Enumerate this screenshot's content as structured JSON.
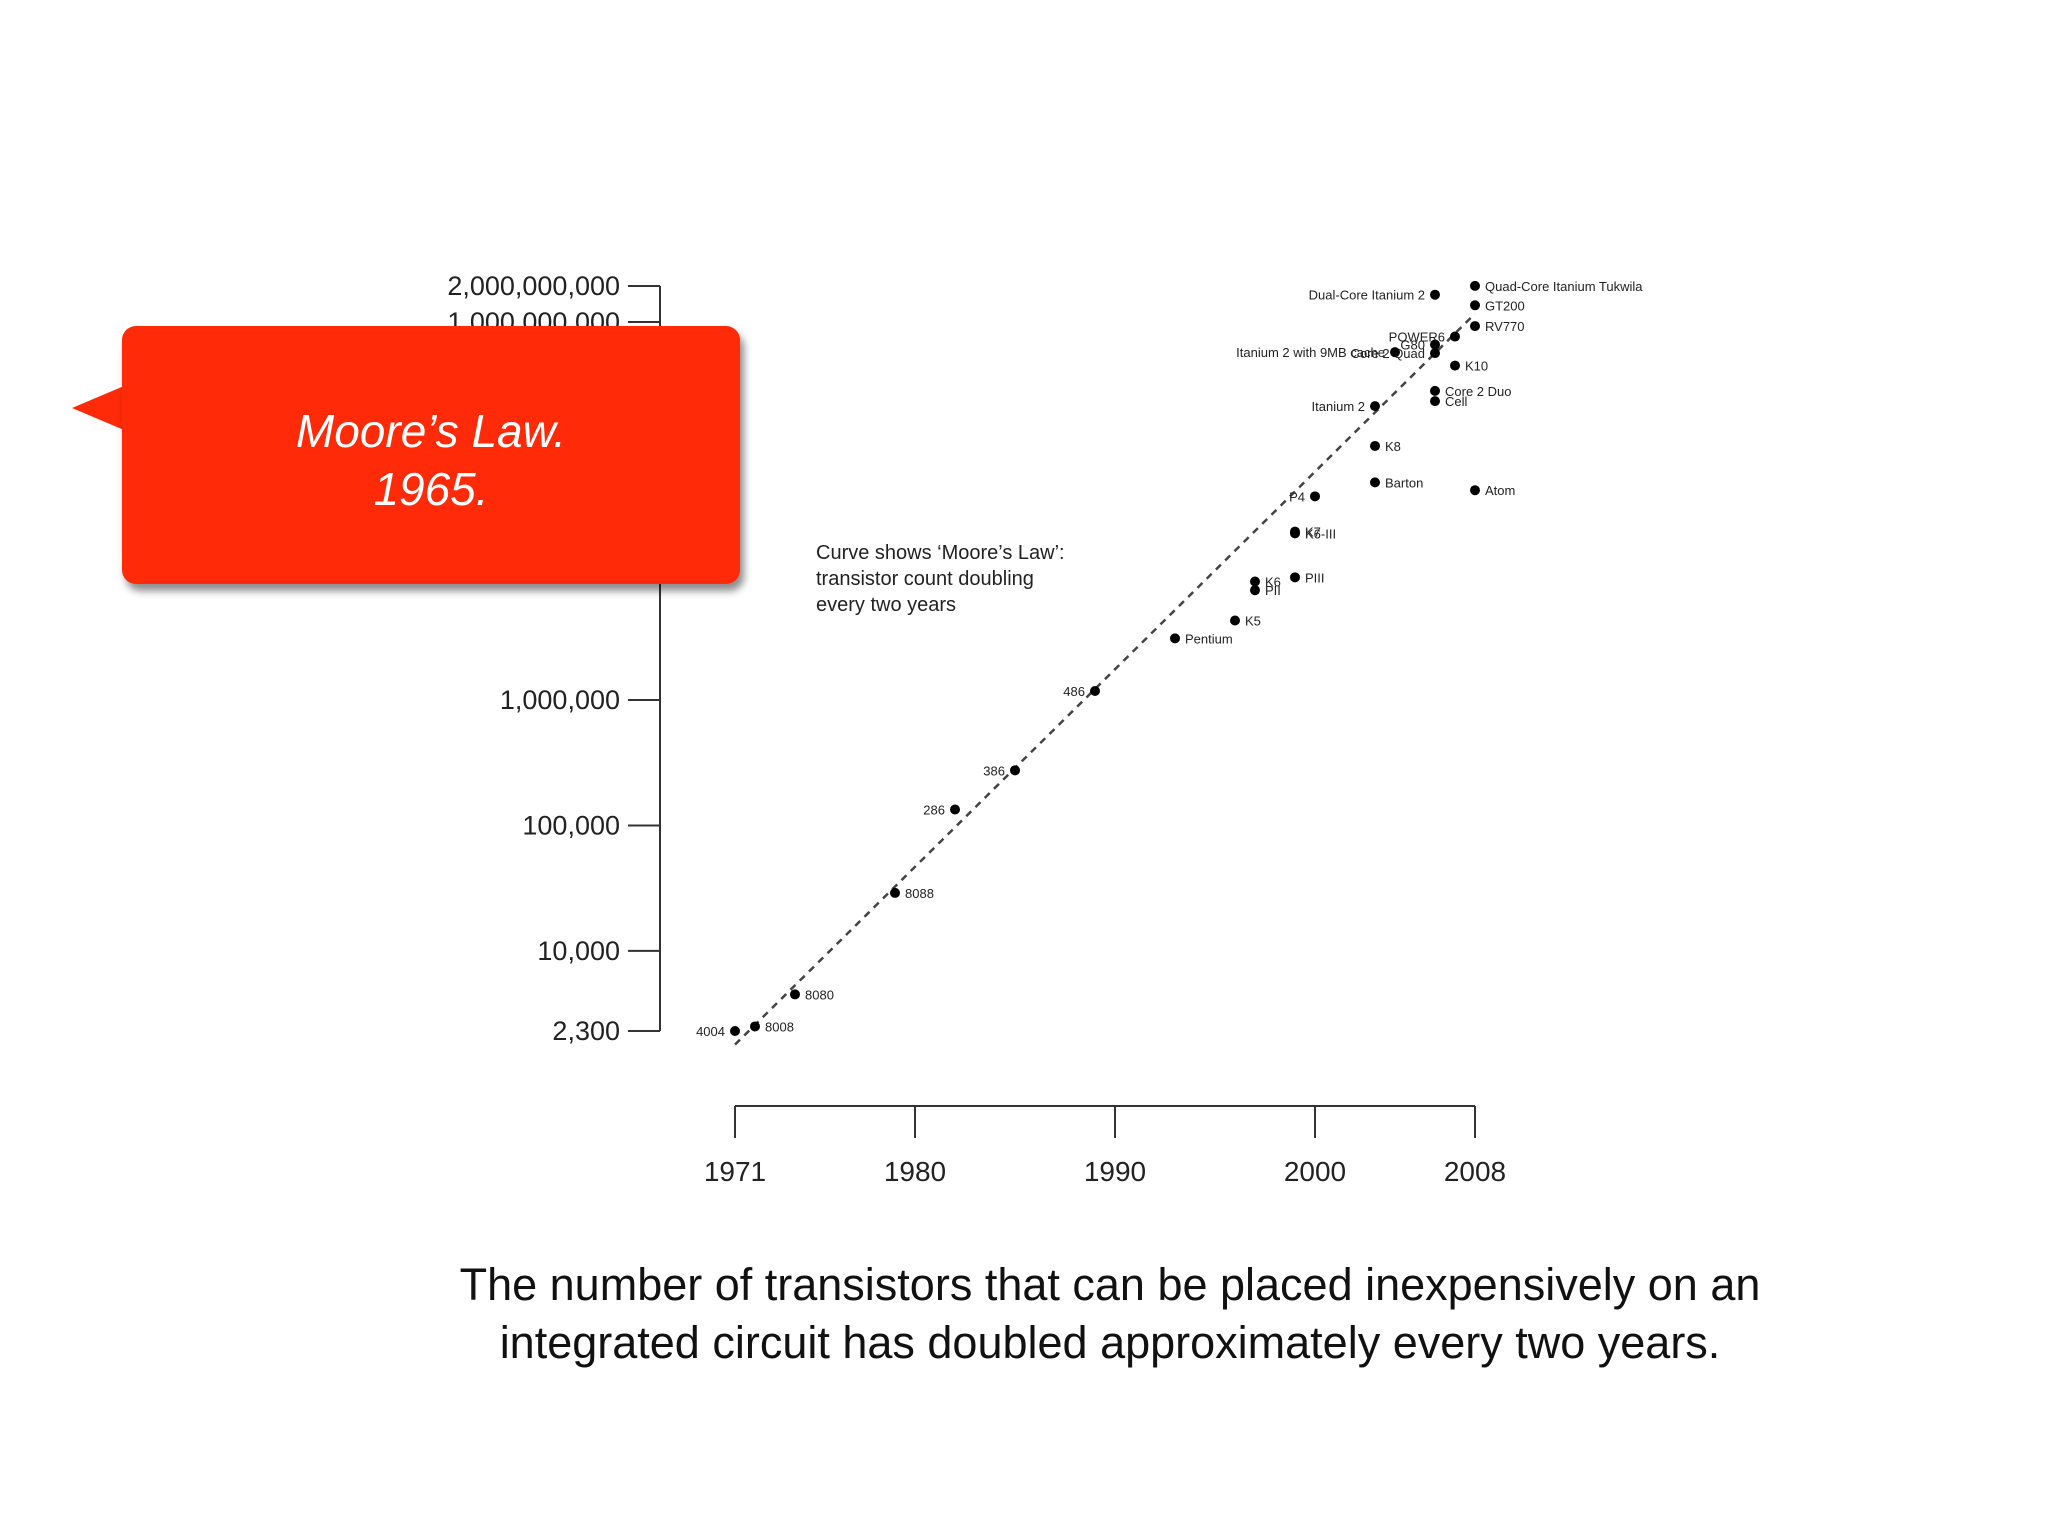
{
  "callout": {
    "line1": "Moore’s Law.",
    "line2": "1965."
  },
  "caption": {
    "line1": "The number of transistors that can be placed inexpensively on an",
    "line2": "integrated circuit has doubled approximately every two years."
  },
  "chart_data": {
    "type": "scatter",
    "title": "",
    "xlabel": "",
    "ylabel": "",
    "yscale": "log",
    "xlim": [
      1971,
      2008
    ],
    "ylim": [
      2300,
      2000000000
    ],
    "x_ticks": [
      1971,
      1980,
      1990,
      2000,
      2008
    ],
    "y_ticks": [
      {
        "value": 2300,
        "label": "2,300"
      },
      {
        "value": 10000,
        "label": "10,000"
      },
      {
        "value": 100000,
        "label": "100,000"
      },
      {
        "value": 1000000,
        "label": "1,000,000"
      },
      {
        "value": 1000000000,
        "label": "1,000,000,000"
      },
      {
        "value": 2000000000,
        "label": "2,000,000,000"
      }
    ],
    "annotation": [
      "Curve shows ‘Moore’s Law’:",
      "transistor count doubling",
      "every two years"
    ],
    "trend_line": {
      "style": "dashed",
      "x": [
        1971,
        2008
      ],
      "y": [
        2000,
        1200000000
      ]
    },
    "points": [
      {
        "label": "4004",
        "x": 1971,
        "y": 2300,
        "side": "left"
      },
      {
        "label": "8008",
        "x": 1972,
        "y": 2500,
        "side": "right"
      },
      {
        "label": "8080",
        "x": 1974,
        "y": 4500,
        "side": "right"
      },
      {
        "label": "8088",
        "x": 1979,
        "y": 29000,
        "side": "right"
      },
      {
        "label": "286",
        "x": 1982,
        "y": 134000,
        "side": "left"
      },
      {
        "label": "386",
        "x": 1985,
        "y": 275000,
        "side": "left"
      },
      {
        "label": "486",
        "x": 1989,
        "y": 1180000,
        "side": "left"
      },
      {
        "label": "Pentium",
        "x": 1993,
        "y": 3100000,
        "side": "right"
      },
      {
        "label": "K5",
        "x": 1996,
        "y": 4300000,
        "side": "right"
      },
      {
        "label": "K6",
        "x": 1997,
        "y": 8800000,
        "side": "right"
      },
      {
        "label": "PII",
        "x": 1997,
        "y": 7500000,
        "side": "right"
      },
      {
        "label": "PIII",
        "x": 1999,
        "y": 9500000,
        "side": "right"
      },
      {
        "label": "K6-III",
        "x": 1999,
        "y": 21300000,
        "side": "right"
      },
      {
        "label": "K7",
        "x": 1999,
        "y": 22000000,
        "side": "right"
      },
      {
        "label": "P4",
        "x": 2000,
        "y": 42000000,
        "side": "left"
      },
      {
        "label": "Barton",
        "x": 2003,
        "y": 54300000,
        "side": "right"
      },
      {
        "label": "K8",
        "x": 2003,
        "y": 105900000,
        "side": "right"
      },
      {
        "label": "Itanium 2",
        "x": 2003,
        "y": 220000000,
        "side": "left"
      },
      {
        "label": "Atom",
        "x": 2008,
        "y": 47000000,
        "side": "right"
      },
      {
        "label": "Cell",
        "x": 2006,
        "y": 241000000,
        "side": "right"
      },
      {
        "label": "Core 2 Duo",
        "x": 2006,
        "y": 291000000,
        "side": "right"
      },
      {
        "label": "K10",
        "x": 2007,
        "y": 463000000,
        "side": "right"
      },
      {
        "label": "Core 2 Quad",
        "x": 2006,
        "y": 582000000,
        "side": "left"
      },
      {
        "label": "Itanium 2 with 9MB cache",
        "x": 2004,
        "y": 592000000,
        "side": "left"
      },
      {
        "label": "G80",
        "x": 2006,
        "y": 681000000,
        "side": "left"
      },
      {
        "label": "POWER6",
        "x": 2007,
        "y": 789000000,
        "side": "left"
      },
      {
        "label": "RV770",
        "x": 2008,
        "y": 956000000,
        "side": "right"
      },
      {
        "label": "Dual-Core Itanium 2",
        "x": 2006,
        "y": 1700000000,
        "side": "left"
      },
      {
        "label": "GT200",
        "x": 2008,
        "y": 1400000000,
        "side": "right"
      },
      {
        "label": "Quad-Core Itanium Tukwila",
        "x": 2008,
        "y": 2000000000,
        "side": "right"
      }
    ]
  }
}
